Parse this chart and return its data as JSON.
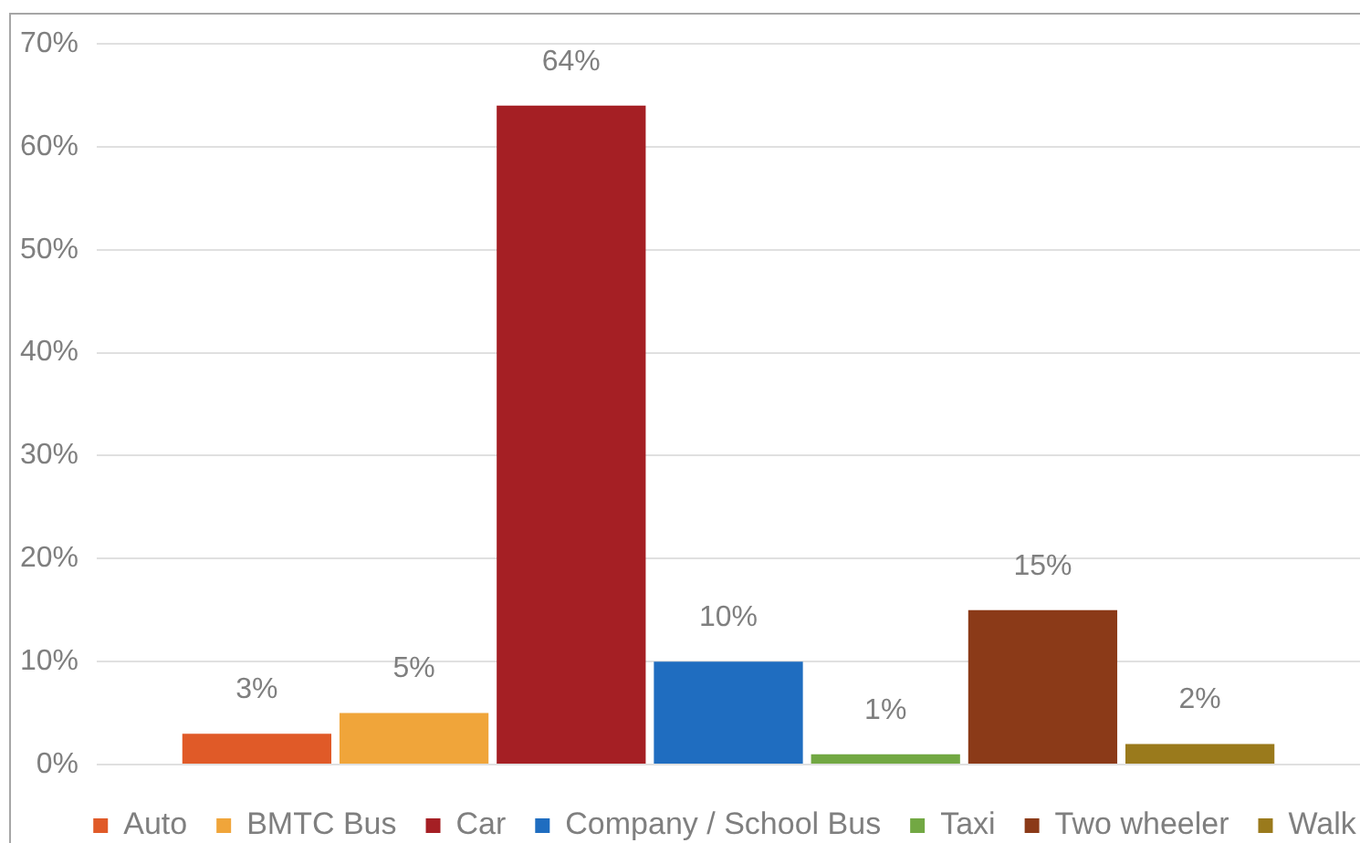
{
  "chart_data": {
    "type": "bar",
    "categories": [
      null
    ],
    "series": [
      {
        "name": "Auto",
        "color": "#e05a28",
        "values": [
          3
        ],
        "value_labels": [
          "3%"
        ]
      },
      {
        "name": "BMTC Bus",
        "color": "#f0a53a",
        "values": [
          5
        ],
        "value_labels": [
          "5%"
        ]
      },
      {
        "name": "Car",
        "color": "#a51f24",
        "values": [
          64
        ],
        "value_labels": [
          "64%"
        ]
      },
      {
        "name": "Company / School Bus",
        "color": "#1f6dc0",
        "values": [
          10
        ],
        "value_labels": [
          "10%"
        ]
      },
      {
        "name": "Taxi",
        "color": "#72a843",
        "values": [
          1
        ],
        "value_labels": [
          "1%"
        ]
      },
      {
        "name": "Two wheeler",
        "color": "#8b3a18",
        "values": [
          15
        ],
        "value_labels": [
          "15%"
        ]
      },
      {
        "name": "Walk",
        "color": "#9a7a1c",
        "values": [
          2
        ],
        "value_labels": [
          "2%"
        ]
      }
    ],
    "ylim": [
      0,
      70
    ],
    "yticks": [
      {
        "value": 0,
        "label": "0%"
      },
      {
        "value": 10,
        "label": "10%"
      },
      {
        "value": 20,
        "label": "20%"
      },
      {
        "value": 30,
        "label": "30%"
      },
      {
        "value": 40,
        "label": "40%"
      },
      {
        "value": 50,
        "label": "50%"
      },
      {
        "value": 60,
        "label": "60%"
      },
      {
        "value": 70,
        "label": "70%"
      }
    ],
    "grid": "y",
    "legend": "bottom"
  }
}
